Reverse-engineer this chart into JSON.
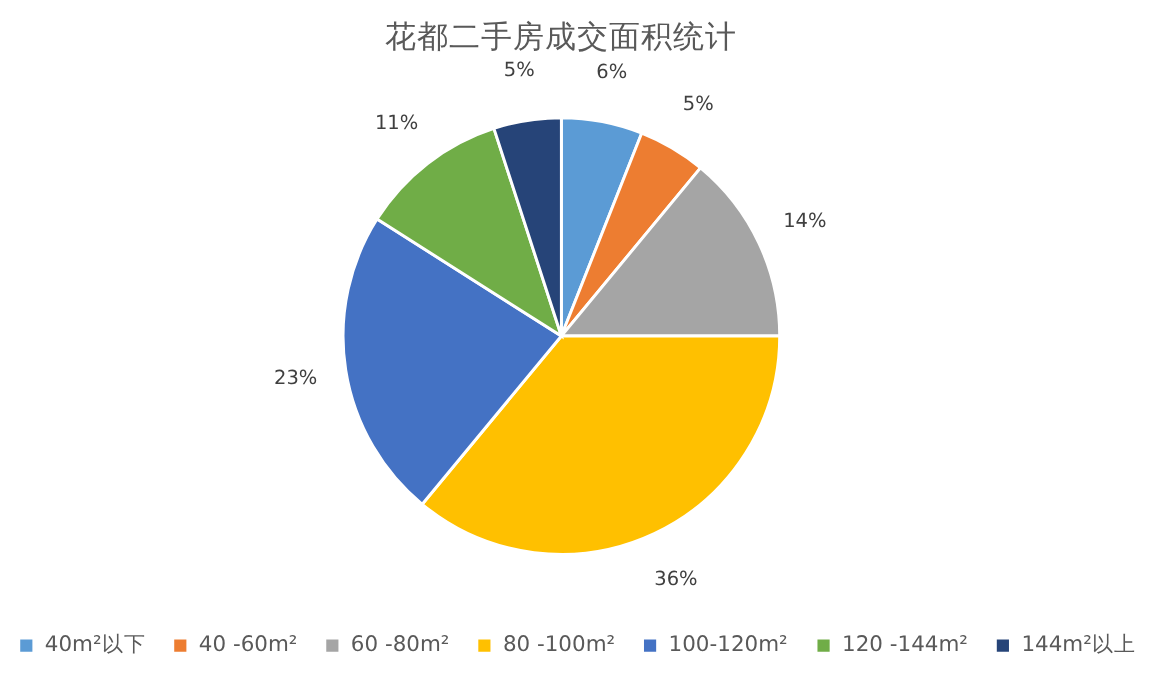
{
  "chart_data": {
    "type": "pie",
    "title": "花都二手房成交面积统计",
    "categories": [
      "40m²以下",
      "40 -60m²",
      "60 -80m²",
      "80 -100m²",
      "100-120m²",
      "120 -144m²",
      "144m²以上"
    ],
    "values": [
      6,
      5,
      14,
      36,
      23,
      11,
      5
    ],
    "value_labels": [
      "6%",
      "5%",
      "14%",
      "36%",
      "23%",
      "11%",
      "5%"
    ],
    "colors": [
      "#5b9bd5",
      "#ed7d31",
      "#a5a5a5",
      "#ffc000",
      "#4472c4",
      "#70ad47",
      "#264478"
    ],
    "legend": "bottom"
  }
}
